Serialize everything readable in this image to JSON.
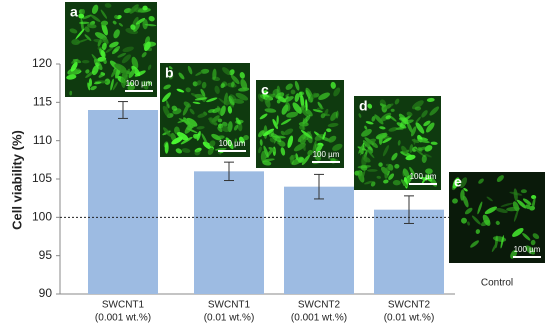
{
  "chart_data": {
    "type": "bar",
    "y_label": "Cell viability (%)",
    "categories": [
      [
        "SWCNT1",
        "(0.001 wt.%)"
      ],
      [
        "SWCNT1",
        "(0.01 wt.%)"
      ],
      [
        "SWCNT2",
        "(0.001 wt.%)"
      ],
      [
        "SWCNT2",
        "(0.01 wt.%)"
      ]
    ],
    "values": [
      114,
      106,
      104,
      101
    ],
    "errors": [
      1.1,
      1.2,
      1.6,
      1.8
    ],
    "color": "#9dbbe2",
    "ylim": [
      90,
      120
    ],
    "yticks": [
      90,
      95,
      100,
      105,
      110,
      115,
      120
    ],
    "reference_line": 100,
    "insets": [
      {
        "label": "a",
        "scale": "100 µm"
      },
      {
        "label": "b",
        "scale": "100 µm"
      },
      {
        "label": "c",
        "scale": "100 µm"
      },
      {
        "label": "d",
        "scale": "100 µm"
      },
      {
        "label": "e",
        "scale": "100 µm"
      }
    ],
    "control_label": "Control"
  }
}
